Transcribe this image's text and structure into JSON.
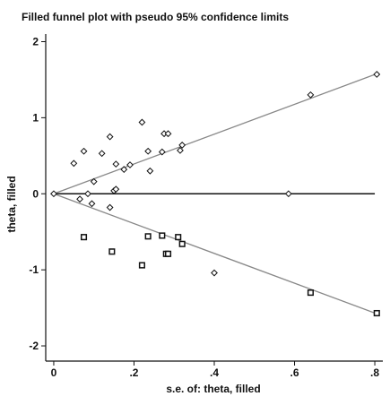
{
  "chart_data": {
    "type": "scatter",
    "title": "Filled funnel plot with pseudo 95% confidence limits",
    "xlabel": "s.e. of: theta, filled",
    "ylabel": "theta, filled",
    "xlim": [
      -0.02,
      0.82
    ],
    "ylim": [
      -2.2,
      2.1
    ],
    "x_ticks": [
      0,
      0.2,
      0.4,
      0.6,
      0.8
    ],
    "x_tick_labels": [
      "0",
      ".2",
      ".4",
      ".6",
      ".8"
    ],
    "y_ticks": [
      -2,
      -1,
      0,
      1,
      2
    ],
    "y_tick_labels": [
      "-2",
      "-1",
      "0",
      "1",
      "2"
    ],
    "grid": false,
    "legend": "none",
    "colors": {
      "axis": "#111111",
      "line": "#888888",
      "marker": "#111111"
    },
    "reference_line": {
      "y": 0
    },
    "confidence_limits": {
      "slope": 1.96,
      "x_max": 0.8
    },
    "series": [
      {
        "marker": "diamond",
        "points": [
          {
            "x": 0.0,
            "y": 0.0
          },
          {
            "x": 0.05,
            "y": 0.4
          },
          {
            "x": 0.065,
            "y": -0.07
          },
          {
            "x": 0.075,
            "y": 0.56
          },
          {
            "x": 0.085,
            "y": 0.0
          },
          {
            "x": 0.095,
            "y": -0.13
          },
          {
            "x": 0.1,
            "y": 0.16
          },
          {
            "x": 0.12,
            "y": 0.53
          },
          {
            "x": 0.14,
            "y": -0.18
          },
          {
            "x": 0.14,
            "y": 0.75
          },
          {
            "x": 0.15,
            "y": 0.04
          },
          {
            "x": 0.155,
            "y": 0.06
          },
          {
            "x": 0.155,
            "y": 0.39
          },
          {
            "x": 0.175,
            "y": 0.32
          },
          {
            "x": 0.19,
            "y": 0.38
          },
          {
            "x": 0.22,
            "y": 0.94
          },
          {
            "x": 0.235,
            "y": 0.56
          },
          {
            "x": 0.24,
            "y": 0.3
          },
          {
            "x": 0.27,
            "y": 0.55
          },
          {
            "x": 0.275,
            "y": 0.79
          },
          {
            "x": 0.285,
            "y": 0.79
          },
          {
            "x": 0.315,
            "y": 0.57
          },
          {
            "x": 0.32,
            "y": 0.64
          },
          {
            "x": 0.4,
            "y": -1.04
          },
          {
            "x": 0.585,
            "y": 0.0
          },
          {
            "x": 0.64,
            "y": 1.3
          },
          {
            "x": 0.805,
            "y": 1.57
          }
        ]
      },
      {
        "marker": "square",
        "points": [
          {
            "x": 0.075,
            "y": -0.57
          },
          {
            "x": 0.145,
            "y": -0.76
          },
          {
            "x": 0.22,
            "y": -0.94
          },
          {
            "x": 0.235,
            "y": -0.56
          },
          {
            "x": 0.27,
            "y": -0.55
          },
          {
            "x": 0.28,
            "y": -0.79
          },
          {
            "x": 0.285,
            "y": -0.79
          },
          {
            "x": 0.31,
            "y": -0.57
          },
          {
            "x": 0.32,
            "y": -0.66
          },
          {
            "x": 0.64,
            "y": -1.3
          },
          {
            "x": 0.805,
            "y": -1.57
          }
        ]
      }
    ]
  }
}
